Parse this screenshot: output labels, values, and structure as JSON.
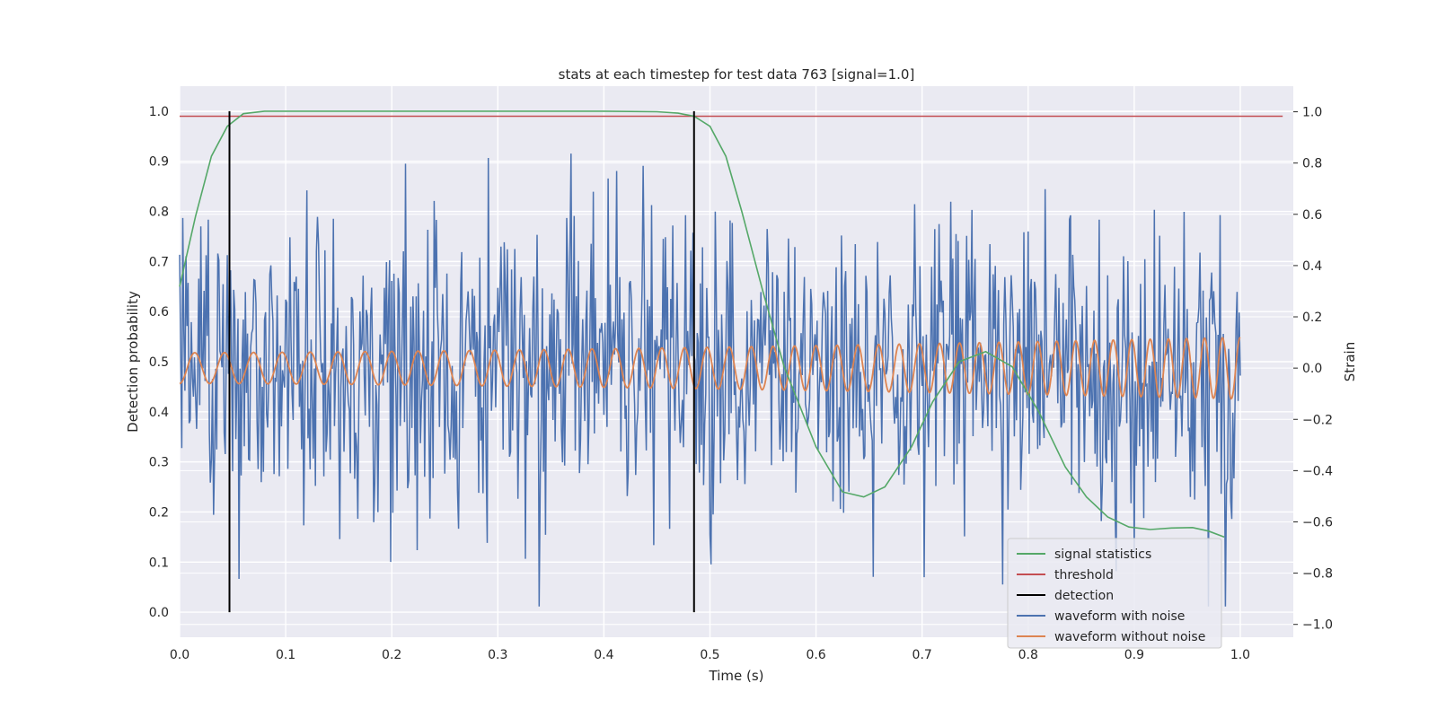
{
  "chart_data": {
    "type": "line",
    "title": "stats at each timestep for test data 763 [signal=1.0]",
    "xlabel": "Time (s)",
    "ylabel_left": "Detection probability",
    "ylabel_right": "Strain",
    "xlim": [
      0.0,
      1.05
    ],
    "ylim_left": [
      -0.05,
      1.05
    ],
    "ylim_right": [
      -1.05,
      1.1
    ],
    "xticks": [
      0.0,
      0.1,
      0.2,
      0.3,
      0.4,
      0.5,
      0.6,
      0.7,
      0.8,
      0.9,
      1.0
    ],
    "xtick_labels": [
      "0.0",
      "0.1",
      "0.2",
      "0.3",
      "0.4",
      "0.5",
      "0.6",
      "0.7",
      "0.8",
      "0.9",
      "1.0"
    ],
    "yticks_left": [
      0.0,
      0.1,
      0.2,
      0.3,
      0.4,
      0.5,
      0.6,
      0.7,
      0.8,
      0.9,
      1.0
    ],
    "ytick_labels_left": [
      "0.0",
      "0.1",
      "0.2",
      "0.3",
      "0.4",
      "0.5",
      "0.6",
      "0.7",
      "0.8",
      "0.9",
      "1.0"
    ],
    "yticks_right": [
      -1.0,
      -0.8,
      -0.6,
      -0.4,
      -0.2,
      0.0,
      0.2,
      0.4,
      0.6,
      0.8,
      1.0
    ],
    "ytick_labels_right": [
      "−1.0",
      "−0.8",
      "−0.6",
      "−0.4",
      "−0.2",
      "0.0",
      "0.2",
      "0.4",
      "0.6",
      "0.8",
      "1.0"
    ],
    "grid": true,
    "legend_position": "lower-right",
    "series": [
      {
        "name": "signal statistics",
        "axis": "left",
        "color": "#55a868",
        "x": [
          0.0,
          0.015,
          0.03,
          0.045,
          0.06,
          0.08,
          0.1,
          0.2,
          0.3,
          0.4,
          0.45,
          0.47,
          0.485,
          0.5,
          0.515,
          0.53,
          0.55,
          0.57,
          0.6,
          0.625,
          0.645,
          0.665,
          0.69,
          0.71,
          0.735,
          0.76,
          0.785,
          0.81,
          0.835,
          0.855,
          0.875,
          0.895,
          0.915,
          0.935,
          0.955,
          0.97,
          0.985
        ],
        "y": [
          0.65,
          0.79,
          0.91,
          0.97,
          0.995,
          1.0,
          1.0,
          1.0,
          1.0,
          1.0,
          0.999,
          0.996,
          0.99,
          0.97,
          0.91,
          0.8,
          0.64,
          0.49,
          0.33,
          0.24,
          0.23,
          0.25,
          0.33,
          0.42,
          0.5,
          0.52,
          0.49,
          0.4,
          0.29,
          0.23,
          0.19,
          0.17,
          0.165,
          0.168,
          0.169,
          0.162,
          0.15
        ]
      },
      {
        "name": "threshold",
        "axis": "left",
        "color": "#c44e52",
        "x": [
          0.0,
          1.04
        ],
        "y": [
          0.99,
          0.99
        ]
      },
      {
        "name": "detection",
        "axis": "left",
        "color": "#000000",
        "x": [
          0.047,
          0.485
        ],
        "y": [
          1.0,
          1.0
        ]
      },
      {
        "name": "waveform with noise",
        "axis": "right",
        "color": "#4c72b0",
        "x_range": [
          0.0,
          1.0
        ],
        "amplitude_approx": 0.3,
        "min_approx": -0.93,
        "max_approx": 1.0
      },
      {
        "name": "waveform without noise",
        "axis": "right",
        "color": "#dd8452",
        "x_range": [
          0.0,
          1.0
        ],
        "amplitude_start": 0.06,
        "amplitude_end": 0.12,
        "freq_start_hz": 35,
        "freq_end_hz": 60
      }
    ]
  }
}
